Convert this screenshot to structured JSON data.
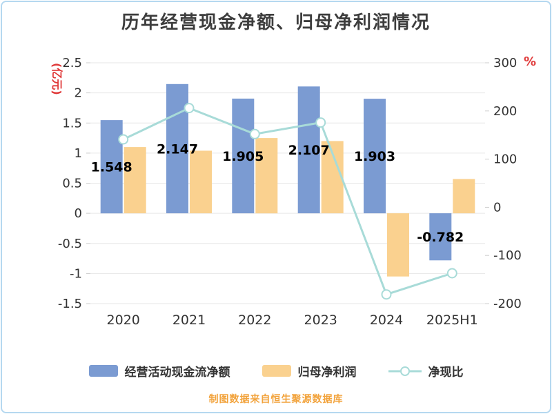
{
  "chart_data": {
    "type": "bar+line",
    "title": "历年经营现金净额、归母净利润情况",
    "categories": [
      "2020",
      "2021",
      "2022",
      "2023",
      "2024",
      "2025H1"
    ],
    "series": [
      {
        "name": "经营活动现金流净额",
        "type": "bar",
        "axis": "left",
        "color": "#7b9bd2",
        "values": [
          1.548,
          2.147,
          1.905,
          2.107,
          1.903,
          -0.782
        ],
        "labels": [
          "1.548",
          "2.147",
          "1.905",
          "2.107",
          "1.903",
          "-0.782"
        ]
      },
      {
        "name": "归母净利润",
        "type": "bar",
        "axis": "left",
        "color": "#fad18f",
        "values": [
          1.1,
          1.04,
          1.25,
          1.2,
          -1.05,
          0.57
        ]
      },
      {
        "name": "净现比",
        "type": "line",
        "axis": "right",
        "color": "#a8dbd8",
        "marker_fill": "#ffffff",
        "values": [
          141,
          206,
          152,
          176,
          -181,
          -137
        ]
      }
    ],
    "left_axis": {
      "name": "(亿元)",
      "name_color": "#e03a3a",
      "min": -1.5,
      "max": 2.5,
      "tick_labels": [
        "2.5",
        "2",
        "1.5",
        "1",
        "0.5",
        "0",
        "-0.5",
        "-1",
        "-1.5"
      ]
    },
    "right_axis": {
      "name": "%",
      "name_color": "#e03a3a",
      "min": -200,
      "max": 300,
      "tick_labels": [
        "300",
        "200",
        "100",
        "0",
        "-100",
        "-200"
      ]
    },
    "grid": true,
    "legend_position": "bottom",
    "label_color": "#000000",
    "tick_color": "#333333"
  },
  "caption": "制图数据来自恒生聚源数据库"
}
